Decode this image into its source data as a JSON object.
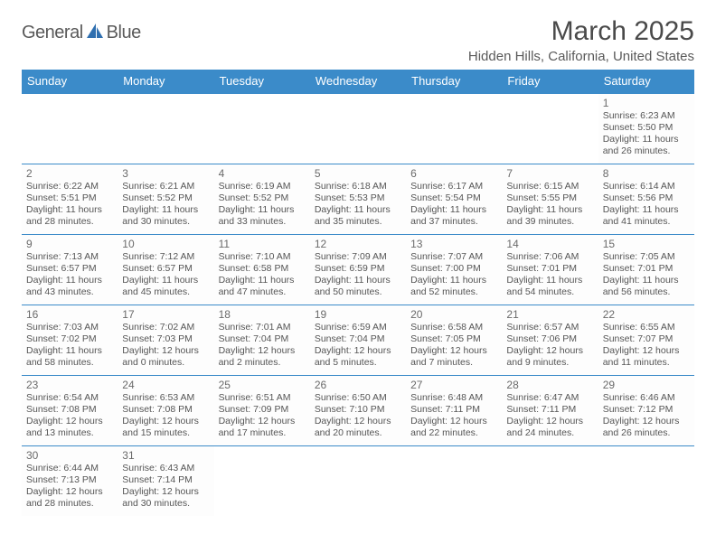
{
  "logo": {
    "text_a": "General",
    "text_b": "Blue"
  },
  "title": "March 2025",
  "subtitle": "Hidden Hills, California, United States",
  "header_bg": "#3b8bc9",
  "columns": [
    "Sunday",
    "Monday",
    "Tuesday",
    "Wednesday",
    "Thursday",
    "Friday",
    "Saturday"
  ],
  "grid_color": "#3b8bc9",
  "cell_bg": "#fdfdfd",
  "text_color": "#555555",
  "font_size_day": 12,
  "font_size_info": 10.5,
  "weeks": [
    [
      null,
      null,
      null,
      null,
      null,
      null,
      {
        "n": "1",
        "sunrise": "6:23 AM",
        "sunset": "5:50 PM",
        "dl": "11 hours and 26 minutes."
      }
    ],
    [
      {
        "n": "2",
        "sunrise": "6:22 AM",
        "sunset": "5:51 PM",
        "dl": "11 hours and 28 minutes."
      },
      {
        "n": "3",
        "sunrise": "6:21 AM",
        "sunset": "5:52 PM",
        "dl": "11 hours and 30 minutes."
      },
      {
        "n": "4",
        "sunrise": "6:19 AM",
        "sunset": "5:52 PM",
        "dl": "11 hours and 33 minutes."
      },
      {
        "n": "5",
        "sunrise": "6:18 AM",
        "sunset": "5:53 PM",
        "dl": "11 hours and 35 minutes."
      },
      {
        "n": "6",
        "sunrise": "6:17 AM",
        "sunset": "5:54 PM",
        "dl": "11 hours and 37 minutes."
      },
      {
        "n": "7",
        "sunrise": "6:15 AM",
        "sunset": "5:55 PM",
        "dl": "11 hours and 39 minutes."
      },
      {
        "n": "8",
        "sunrise": "6:14 AM",
        "sunset": "5:56 PM",
        "dl": "11 hours and 41 minutes."
      }
    ],
    [
      {
        "n": "9",
        "sunrise": "7:13 AM",
        "sunset": "6:57 PM",
        "dl": "11 hours and 43 minutes."
      },
      {
        "n": "10",
        "sunrise": "7:12 AM",
        "sunset": "6:57 PM",
        "dl": "11 hours and 45 minutes."
      },
      {
        "n": "11",
        "sunrise": "7:10 AM",
        "sunset": "6:58 PM",
        "dl": "11 hours and 47 minutes."
      },
      {
        "n": "12",
        "sunrise": "7:09 AM",
        "sunset": "6:59 PM",
        "dl": "11 hours and 50 minutes."
      },
      {
        "n": "13",
        "sunrise": "7:07 AM",
        "sunset": "7:00 PM",
        "dl": "11 hours and 52 minutes."
      },
      {
        "n": "14",
        "sunrise": "7:06 AM",
        "sunset": "7:01 PM",
        "dl": "11 hours and 54 minutes."
      },
      {
        "n": "15",
        "sunrise": "7:05 AM",
        "sunset": "7:01 PM",
        "dl": "11 hours and 56 minutes."
      }
    ],
    [
      {
        "n": "16",
        "sunrise": "7:03 AM",
        "sunset": "7:02 PM",
        "dl": "11 hours and 58 minutes."
      },
      {
        "n": "17",
        "sunrise": "7:02 AM",
        "sunset": "7:03 PM",
        "dl": "12 hours and 0 minutes."
      },
      {
        "n": "18",
        "sunrise": "7:01 AM",
        "sunset": "7:04 PM",
        "dl": "12 hours and 2 minutes."
      },
      {
        "n": "19",
        "sunrise": "6:59 AM",
        "sunset": "7:04 PM",
        "dl": "12 hours and 5 minutes."
      },
      {
        "n": "20",
        "sunrise": "6:58 AM",
        "sunset": "7:05 PM",
        "dl": "12 hours and 7 minutes."
      },
      {
        "n": "21",
        "sunrise": "6:57 AM",
        "sunset": "7:06 PM",
        "dl": "12 hours and 9 minutes."
      },
      {
        "n": "22",
        "sunrise": "6:55 AM",
        "sunset": "7:07 PM",
        "dl": "12 hours and 11 minutes."
      }
    ],
    [
      {
        "n": "23",
        "sunrise": "6:54 AM",
        "sunset": "7:08 PM",
        "dl": "12 hours and 13 minutes."
      },
      {
        "n": "24",
        "sunrise": "6:53 AM",
        "sunset": "7:08 PM",
        "dl": "12 hours and 15 minutes."
      },
      {
        "n": "25",
        "sunrise": "6:51 AM",
        "sunset": "7:09 PM",
        "dl": "12 hours and 17 minutes."
      },
      {
        "n": "26",
        "sunrise": "6:50 AM",
        "sunset": "7:10 PM",
        "dl": "12 hours and 20 minutes."
      },
      {
        "n": "27",
        "sunrise": "6:48 AM",
        "sunset": "7:11 PM",
        "dl": "12 hours and 22 minutes."
      },
      {
        "n": "28",
        "sunrise": "6:47 AM",
        "sunset": "7:11 PM",
        "dl": "12 hours and 24 minutes."
      },
      {
        "n": "29",
        "sunrise": "6:46 AM",
        "sunset": "7:12 PM",
        "dl": "12 hours and 26 minutes."
      }
    ],
    [
      {
        "n": "30",
        "sunrise": "6:44 AM",
        "sunset": "7:13 PM",
        "dl": "12 hours and 28 minutes."
      },
      {
        "n": "31",
        "sunrise": "6:43 AM",
        "sunset": "7:14 PM",
        "dl": "12 hours and 30 minutes."
      },
      null,
      null,
      null,
      null,
      null
    ]
  ]
}
